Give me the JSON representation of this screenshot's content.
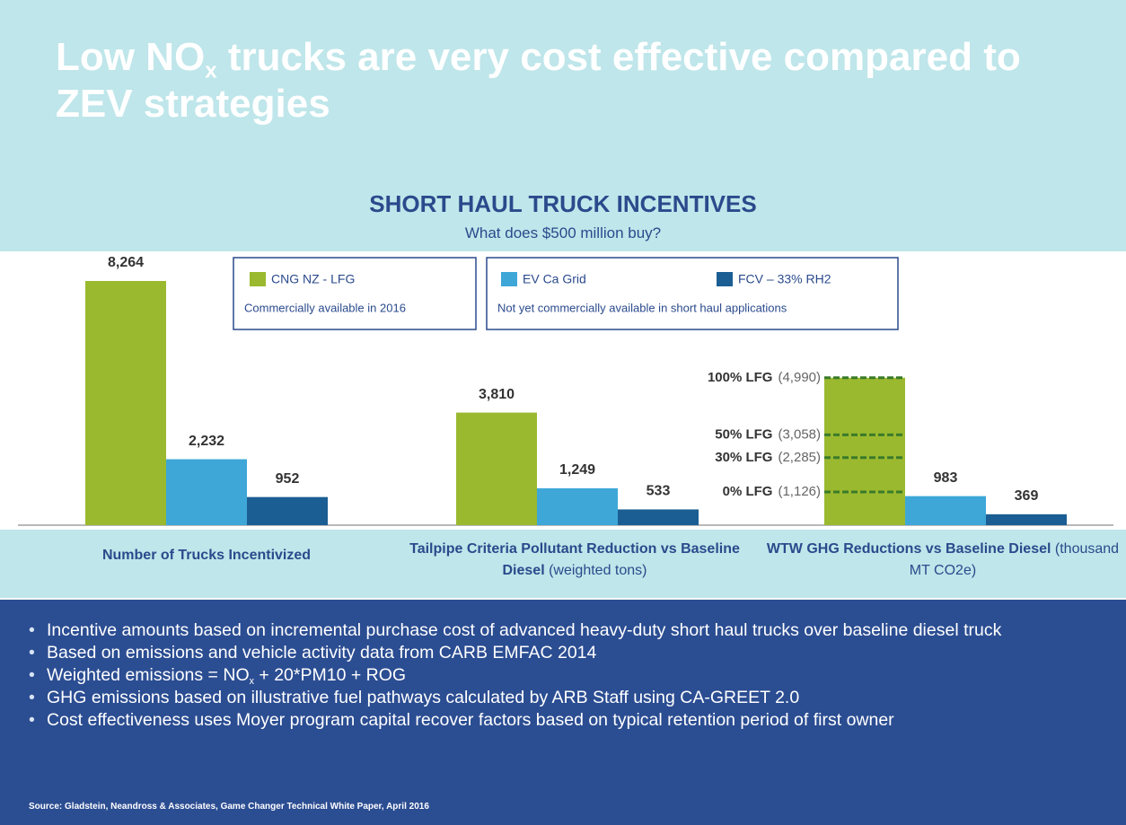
{
  "title_parts": [
    "Low NO",
    "x",
    " trucks are very cost effective compared to ZEV strategies"
  ],
  "chart_data": {
    "type": "bar",
    "title": "SHORT HAUL TRUCK INCENTIVES",
    "subtitle": "What does $500 million buy?",
    "categories": [
      "Number of Trucks Incentivized",
      "Tailpipe Criteria Pollutant Reduction vs Baseline Diesel",
      "WTW GHG Reductions vs Baseline Diesel"
    ],
    "category_units": [
      null,
      "(weighted tons)",
      "(thousand MT CO2e)"
    ],
    "series": [
      {
        "name": "CNG NZ - LFG",
        "color": "#9ab92f",
        "values": [
          8264,
          3810,
          4990
        ],
        "value_labels": [
          "8,264",
          "3,810",
          null
        ]
      },
      {
        "name": "EV Ca Grid",
        "color": "#3ea7d8",
        "values": [
          2232,
          1249,
          983
        ],
        "value_labels": [
          "2,232",
          "1,249",
          "983"
        ]
      },
      {
        "name": "FCV – 33% RH2",
        "color": "#1b5e93",
        "values": [
          952,
          533,
          369
        ],
        "value_labels": [
          "952",
          "533",
          "369"
        ]
      }
    ],
    "legend_notes": [
      "Commercially available in 2016",
      "Not yet commercially available in short haul applications"
    ],
    "lfg_levels": [
      {
        "label": "100% LFG",
        "value": 4990,
        "value_label": "(4,990)"
      },
      {
        "label": "50% LFG",
        "value": 3058,
        "value_label": "(3,058)"
      },
      {
        "label": "30% LFG",
        "value": 2285,
        "value_label": "(2,285)"
      },
      {
        "label": "0% LFG",
        "value": 1126,
        "value_label": "(1,126)"
      }
    ]
  },
  "bullets": [
    [
      "Incentive amounts based on incremental purchase cost of advanced heavy-duty short haul trucks over baseline diesel truck"
    ],
    [
      "Based on emissions and vehicle activity data from CARB EMFAC 2014"
    ],
    [
      "Weighted emissions = NO",
      "x",
      " + 20*PM10 + ROG"
    ],
    [
      "GHG emissions based on illustrative fuel pathways calculated by ARB Staff using CA-GREET 2.0"
    ],
    [
      "Cost effectiveness uses Moyer program capital recover factors based on typical retention period of first owner"
    ]
  ],
  "source": "Source: Gladstein, Neandross & Associates, Game Changer Technical White Paper, April 2016"
}
